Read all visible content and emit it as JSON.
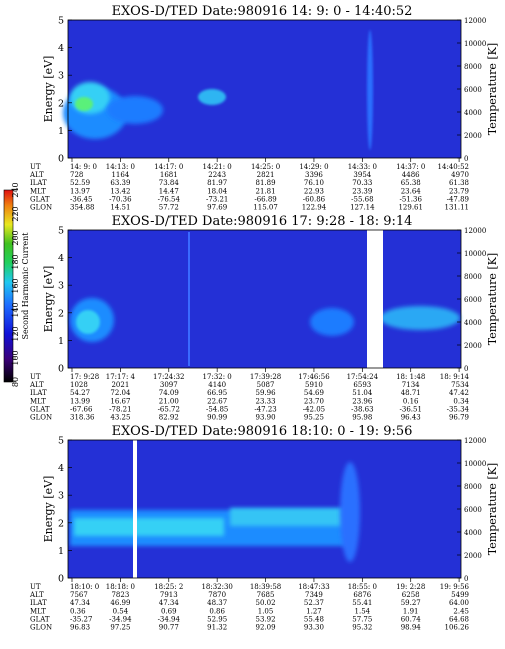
{
  "colorbar": {
    "label": "Second Harmonic Current",
    "ticks": [
      "80",
      "100",
      "120",
      "140",
      "160",
      "180",
      "200",
      "220",
      "240"
    ]
  },
  "chart_data": [
    {
      "type": "heatmap",
      "title": "EXOS-D/TED   Date:980916  14: 9: 0 - 14:40:52",
      "ylabel": "Energy [eV]",
      "y2label": "Temperature [K]",
      "ylim": [
        0,
        5
      ],
      "yticks": [
        "0",
        "1",
        "2",
        "3",
        "4",
        "5"
      ],
      "y2lim": [
        0,
        12000
      ],
      "y2ticks": [
        "0",
        "2000",
        "4000",
        "6000",
        "8000",
        "10000",
        "12000"
      ],
      "ephem_labels": [
        "UT",
        "ALT",
        "ILAT",
        "MLT",
        "GLAT",
        "GLON"
      ],
      "ephem": [
        [
          "14: 9: 0",
          "728",
          "52.59",
          "13.97",
          "-36.45",
          "354.88"
        ],
        [
          "14:13: 0",
          "1164",
          "63.39",
          "13.42",
          "-70.36",
          "14.51"
        ],
        [
          "14:17: 0",
          "1681",
          "73.84",
          "14.47",
          "-76.54",
          "57.72"
        ],
        [
          "14:21: 0",
          "2243",
          "81.97",
          "18.04",
          "-73.21",
          "97.69"
        ],
        [
          "14:25: 0",
          "2821",
          "81.89",
          "21.81",
          "-66.89",
          "115.07"
        ],
        [
          "14:29: 0",
          "3396",
          "76.10",
          "22.93",
          "-60.86",
          "122.94"
        ],
        [
          "14:33: 0",
          "3954",
          "70.33",
          "23.39",
          "-55.68",
          "127.14"
        ],
        [
          "14:37: 0",
          "4486",
          "65.38",
          "23.64",
          "-51.36",
          "129.61"
        ],
        [
          "14:40:52",
          "4970",
          "61.38",
          "23.79",
          "-47.89",
          "131.11"
        ]
      ]
    },
    {
      "type": "heatmap",
      "title": "EXOS-D/TED   Date:980916  17: 9:28 - 18: 9:14",
      "ylabel": "Energy [eV]",
      "y2label": "Temperature [K]",
      "ylim": [
        0,
        5
      ],
      "yticks": [
        "0",
        "1",
        "2",
        "3",
        "4",
        "5"
      ],
      "y2lim": [
        0,
        12000
      ],
      "y2ticks": [
        "0",
        "2000",
        "4000",
        "6000",
        "8000",
        "10000",
        "12000"
      ],
      "ephem_labels": [
        "UT",
        "ALT",
        "ILAT",
        "MLT",
        "GLAT",
        "GLON"
      ],
      "ephem": [
        [
          "17: 9:28",
          "1028",
          "54.27",
          "13.99",
          "-67.66",
          "318.36"
        ],
        [
          "17:17: 4",
          "2021",
          "72.04",
          "16.67",
          "-78.21",
          "43.25"
        ],
        [
          "17:24:32",
          "3097",
          "74.09",
          "21.00",
          "-65.72",
          "82.92"
        ],
        [
          "17:32: 0",
          "4140",
          "66.95",
          "22.67",
          "-54.85",
          "90.99"
        ],
        [
          "17:39:28",
          "5087",
          "59.96",
          "23.33",
          "-47.23",
          "93.90"
        ],
        [
          "17:46:56",
          "5910",
          "54.69",
          "23.70",
          "-42.05",
          "95.25"
        ],
        [
          "17:54:24",
          "6593",
          "51.04",
          "23.96",
          "-38.63",
          "95.98"
        ],
        [
          "18: 1:48",
          "7134",
          "48.71",
          "0.16",
          "-36.51",
          "96.43"
        ],
        [
          "18: 9:14",
          "7534",
          "47.42",
          "0.34",
          "-35.34",
          "96.79"
        ]
      ]
    },
    {
      "type": "heatmap",
      "title": "EXOS-D/TED   Date:980916  18:10: 0 - 19: 9:56",
      "ylabel": "Energy [eV]",
      "y2label": "Temperature [K]",
      "ylim": [
        0,
        5
      ],
      "yticks": [
        "0",
        "1",
        "2",
        "3",
        "4",
        "5"
      ],
      "y2lim": [
        0,
        12000
      ],
      "y2ticks": [
        "0",
        "2000",
        "4000",
        "6000",
        "8000",
        "10000",
        "12000"
      ],
      "ephem_labels": [
        "UT",
        "ALT",
        "ILAT",
        "MLT",
        "GLAT",
        "GLON"
      ],
      "ephem": [
        [
          "18:10: 0",
          "7567",
          "47.34",
          "0.36",
          "-35.27",
          "96.83"
        ],
        [
          "18:18: 0",
          "7823",
          "46.99",
          "0.54",
          "-34.94",
          "97.25"
        ],
        [
          "18:25: 2",
          "7913",
          "47.34",
          "0.69",
          "-34.94",
          "90.77"
        ],
        [
          "18:32:30",
          "7870",
          "48.37",
          "0.86",
          "52.95",
          "91.32"
        ],
        [
          "18:39:58",
          "7685",
          "50.02",
          "1.05",
          "53.92",
          "92.09"
        ],
        [
          "18:47:33",
          "7349",
          "52.37",
          "1.27",
          "55.48",
          "93.30"
        ],
        [
          "18:55: 0",
          "6876",
          "55.41",
          "1.54",
          "57.75",
          "95.32"
        ],
        [
          "19: 2:28",
          "6258",
          "59.27",
          "1.91",
          "60.74",
          "98.94"
        ],
        [
          "19: 9:56",
          "5499",
          "64.00",
          "2.45",
          "64.68",
          "106.26"
        ]
      ]
    }
  ]
}
